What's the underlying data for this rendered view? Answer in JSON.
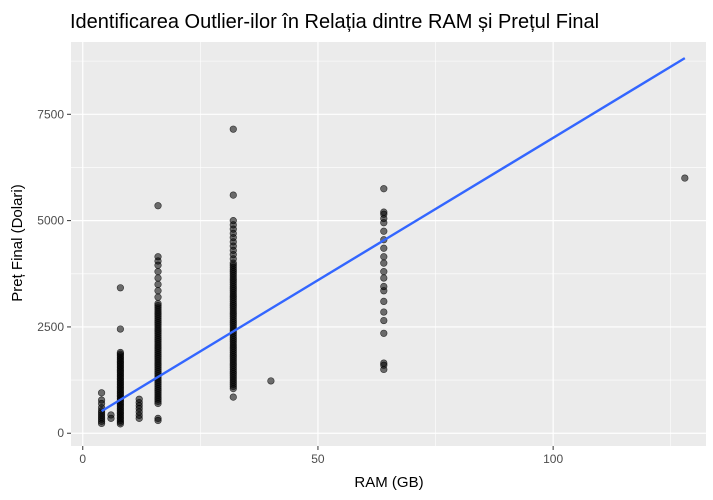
{
  "chart_data": {
    "type": "scatter",
    "title": "Identificarea Outlier-ilor în Relația dintre RAM și Prețul Final",
    "xlabel": "RAM (GB)",
    "ylabel": "Preț Final (Dolari)",
    "xlim": [
      -2.5,
      132.5
    ],
    "ylim": [
      -300,
      9200
    ],
    "x_ticks": [
      0,
      50,
      100
    ],
    "y_ticks": [
      0,
      2500,
      5000,
      7500
    ],
    "grid": true,
    "panel_background": "#ebebeb",
    "point_color": "#000000",
    "trend_color": "#3366ff",
    "trend_line": {
      "x": [
        4,
        128
      ],
      "y": [
        520,
        8820
      ]
    },
    "points": [
      [
        4,
        230
      ],
      [
        4,
        280
      ],
      [
        4,
        330
      ],
      [
        4,
        380
      ],
      [
        4,
        430
      ],
      [
        4,
        480
      ],
      [
        4,
        530
      ],
      [
        4,
        600
      ],
      [
        4,
        700
      ],
      [
        4,
        780
      ],
      [
        4,
        950
      ],
      [
        6,
        350
      ],
      [
        6,
        430
      ],
      [
        8,
        220
      ],
      [
        8,
        260
      ],
      [
        8,
        300
      ],
      [
        8,
        340
      ],
      [
        8,
        380
      ],
      [
        8,
        420
      ],
      [
        8,
        460
      ],
      [
        8,
        500
      ],
      [
        8,
        540
      ],
      [
        8,
        580
      ],
      [
        8,
        620
      ],
      [
        8,
        660
      ],
      [
        8,
        700
      ],
      [
        8,
        740
      ],
      [
        8,
        780
      ],
      [
        8,
        820
      ],
      [
        8,
        860
      ],
      [
        8,
        900
      ],
      [
        8,
        940
      ],
      [
        8,
        980
      ],
      [
        8,
        1020
      ],
      [
        8,
        1060
      ],
      [
        8,
        1100
      ],
      [
        8,
        1140
      ],
      [
        8,
        1180
      ],
      [
        8,
        1220
      ],
      [
        8,
        1260
      ],
      [
        8,
        1300
      ],
      [
        8,
        1340
      ],
      [
        8,
        1380
      ],
      [
        8,
        1420
      ],
      [
        8,
        1460
      ],
      [
        8,
        1500
      ],
      [
        8,
        1540
      ],
      [
        8,
        1580
      ],
      [
        8,
        1620
      ],
      [
        8,
        1660
      ],
      [
        8,
        1700
      ],
      [
        8,
        1740
      ],
      [
        8,
        1780
      ],
      [
        8,
        1820
      ],
      [
        8,
        1860
      ],
      [
        8,
        1900
      ],
      [
        8,
        2450
      ],
      [
        8,
        3420
      ],
      [
        12,
        350
      ],
      [
        12,
        420
      ],
      [
        12,
        500
      ],
      [
        12,
        580
      ],
      [
        12,
        650
      ],
      [
        12,
        720
      ],
      [
        12,
        800
      ],
      [
        16,
        300
      ],
      [
        16,
        350
      ],
      [
        16,
        700
      ],
      [
        16,
        750
      ],
      [
        16,
        800
      ],
      [
        16,
        850
      ],
      [
        16,
        900
      ],
      [
        16,
        950
      ],
      [
        16,
        1000
      ],
      [
        16,
        1050
      ],
      [
        16,
        1100
      ],
      [
        16,
        1150
      ],
      [
        16,
        1200
      ],
      [
        16,
        1250
      ],
      [
        16,
        1300
      ],
      [
        16,
        1350
      ],
      [
        16,
        1400
      ],
      [
        16,
        1450
      ],
      [
        16,
        1500
      ],
      [
        16,
        1550
      ],
      [
        16,
        1600
      ],
      [
        16,
        1650
      ],
      [
        16,
        1700
      ],
      [
        16,
        1750
      ],
      [
        16,
        1800
      ],
      [
        16,
        1850
      ],
      [
        16,
        1900
      ],
      [
        16,
        1950
      ],
      [
        16,
        2000
      ],
      [
        16,
        2050
      ],
      [
        16,
        2100
      ],
      [
        16,
        2150
      ],
      [
        16,
        2200
      ],
      [
        16,
        2250
      ],
      [
        16,
        2300
      ],
      [
        16,
        2350
      ],
      [
        16,
        2400
      ],
      [
        16,
        2450
      ],
      [
        16,
        2500
      ],
      [
        16,
        2550
      ],
      [
        16,
        2600
      ],
      [
        16,
        2650
      ],
      [
        16,
        2700
      ],
      [
        16,
        2750
      ],
      [
        16,
        2800
      ],
      [
        16,
        2850
      ],
      [
        16,
        2900
      ],
      [
        16,
        2950
      ],
      [
        16,
        3000
      ],
      [
        16,
        3050
      ],
      [
        16,
        3200
      ],
      [
        16,
        3350
      ],
      [
        16,
        3500
      ],
      [
        16,
        3650
      ],
      [
        16,
        3800
      ],
      [
        16,
        3950
      ],
      [
        16,
        4050
      ],
      [
        16,
        4150
      ],
      [
        16,
        5350
      ],
      [
        32,
        850
      ],
      [
        32,
        1050
      ],
      [
        32,
        1100
      ],
      [
        32,
        1150
      ],
      [
        32,
        1200
      ],
      [
        32,
        1250
      ],
      [
        32,
        1300
      ],
      [
        32,
        1350
      ],
      [
        32,
        1400
      ],
      [
        32,
        1450
      ],
      [
        32,
        1500
      ],
      [
        32,
        1550
      ],
      [
        32,
        1600
      ],
      [
        32,
        1650
      ],
      [
        32,
        1700
      ],
      [
        32,
        1750
      ],
      [
        32,
        1800
      ],
      [
        32,
        1850
      ],
      [
        32,
        1900
      ],
      [
        32,
        1950
      ],
      [
        32,
        2000
      ],
      [
        32,
        2050
      ],
      [
        32,
        2100
      ],
      [
        32,
        2150
      ],
      [
        32,
        2200
      ],
      [
        32,
        2250
      ],
      [
        32,
        2300
      ],
      [
        32,
        2350
      ],
      [
        32,
        2400
      ],
      [
        32,
        2450
      ],
      [
        32,
        2500
      ],
      [
        32,
        2550
      ],
      [
        32,
        2600
      ],
      [
        32,
        2650
      ],
      [
        32,
        2700
      ],
      [
        32,
        2750
      ],
      [
        32,
        2800
      ],
      [
        32,
        2850
      ],
      [
        32,
        2900
      ],
      [
        32,
        2950
      ],
      [
        32,
        3000
      ],
      [
        32,
        3050
      ],
      [
        32,
        3100
      ],
      [
        32,
        3150
      ],
      [
        32,
        3200
      ],
      [
        32,
        3250
      ],
      [
        32,
        3300
      ],
      [
        32,
        3350
      ],
      [
        32,
        3400
      ],
      [
        32,
        3450
      ],
      [
        32,
        3500
      ],
      [
        32,
        3550
      ],
      [
        32,
        3600
      ],
      [
        32,
        3650
      ],
      [
        32,
        3700
      ],
      [
        32,
        3750
      ],
      [
        32,
        3800
      ],
      [
        32,
        3850
      ],
      [
        32,
        3900
      ],
      [
        32,
        3950
      ],
      [
        32,
        4000
      ],
      [
        32,
        4100
      ],
      [
        32,
        4200
      ],
      [
        32,
        4300
      ],
      [
        32,
        4400
      ],
      [
        32,
        4500
      ],
      [
        32,
        4600
      ],
      [
        32,
        4700
      ],
      [
        32,
        4800
      ],
      [
        32,
        4900
      ],
      [
        32,
        5000
      ],
      [
        32,
        5600
      ],
      [
        32,
        7150
      ],
      [
        40,
        1230
      ],
      [
        64,
        1500
      ],
      [
        64,
        1600
      ],
      [
        64,
        1650
      ],
      [
        64,
        2350
      ],
      [
        64,
        2650
      ],
      [
        64,
        2850
      ],
      [
        64,
        3100
      ],
      [
        64,
        3350
      ],
      [
        64,
        3450
      ],
      [
        64,
        3650
      ],
      [
        64,
        3800
      ],
      [
        64,
        4000
      ],
      [
        64,
        4150
      ],
      [
        64,
        4350
      ],
      [
        64,
        4550
      ],
      [
        64,
        4750
      ],
      [
        64,
        4950
      ],
      [
        64,
        5050
      ],
      [
        64,
        5150
      ],
      [
        64,
        5200
      ],
      [
        64,
        5750
      ],
      [
        128,
        6000
      ]
    ]
  }
}
